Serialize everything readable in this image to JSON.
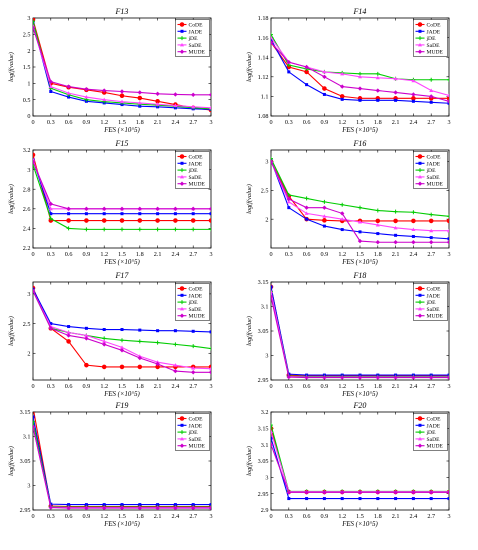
{
  "chart_data": [
    {
      "type": "line",
      "title": "F13",
      "xlabel": "FES (×10^5)",
      "ylabel": "log(f(value)",
      "x": [
        0,
        0.3,
        0.6,
        0.9,
        1.2,
        1.5,
        1.8,
        2.1,
        2.4,
        2.7,
        3
      ],
      "xticks": [
        "0",
        "0.3",
        "0.6",
        "0.9",
        "1.2",
        "1.5",
        "1.8",
        "2.1",
        "2.4",
        "2.7",
        "3"
      ],
      "xlim": [
        0,
        3
      ],
      "ylim": [
        0,
        3
      ],
      "yticks": [
        0,
        0.5,
        1,
        1.5,
        2,
        2.5,
        3
      ],
      "yticklabels": [
        "0",
        "0.5",
        "1",
        "1.5",
        "2",
        "2.5",
        "3"
      ],
      "legend": "top-right",
      "series": [
        {
          "name": "CoDE",
          "color": "#ff0000",
          "values": [
            2.95,
            1.0,
            0.88,
            0.8,
            0.72,
            0.62,
            0.55,
            0.45,
            0.35,
            0.25,
            0.18
          ]
        },
        {
          "name": "JADE",
          "color": "#0000ff",
          "values": [
            2.85,
            0.75,
            0.58,
            0.45,
            0.4,
            0.35,
            0.3,
            0.28,
            0.25,
            0.22,
            0.2
          ]
        },
        {
          "name": "jDE",
          "color": "#00cc00",
          "values": [
            2.9,
            0.85,
            0.65,
            0.5,
            0.44,
            0.4,
            0.36,
            0.33,
            0.3,
            0.25,
            0.22
          ]
        },
        {
          "name": "SaDE",
          "color": "#ff44ff",
          "values": [
            2.75,
            0.9,
            0.7,
            0.58,
            0.5,
            0.44,
            0.4,
            0.36,
            0.32,
            0.28,
            0.25
          ]
        },
        {
          "name": "MUDE",
          "color": "#cc00cc",
          "values": [
            2.7,
            1.05,
            0.9,
            0.82,
            0.78,
            0.75,
            0.72,
            0.68,
            0.66,
            0.65,
            0.65
          ]
        }
      ]
    },
    {
      "type": "line",
      "title": "F14",
      "xlabel": "FES (×10^5)",
      "ylabel": "log(f(value)",
      "x": [
        0,
        0.3,
        0.6,
        0.9,
        1.2,
        1.5,
        1.8,
        2.1,
        2.4,
        2.7,
        3
      ],
      "xticks": [
        "0",
        "0.3",
        "0.6",
        "0.9",
        "1.2",
        "1.5",
        "1.8",
        "2.1",
        "2.4",
        "2.7",
        "3"
      ],
      "xlim": [
        0,
        3
      ],
      "ylim": [
        1.08,
        1.18
      ],
      "yticks": [
        1.08,
        1.1,
        1.12,
        1.14,
        1.16,
        1.18
      ],
      "yticklabels": [
        "1.08",
        "1.1",
        "1.12",
        "1.14",
        "1.16",
        "1.18"
      ],
      "legend": "top-right",
      "series": [
        {
          "name": "CoDE",
          "color": "#ff0000",
          "values": [
            1.155,
            1.13,
            1.125,
            1.108,
            1.1,
            1.098,
            1.098,
            1.098,
            1.098,
            1.098,
            1.098
          ]
        },
        {
          "name": "JADE",
          "color": "#0000ff",
          "values": [
            1.158,
            1.125,
            1.112,
            1.102,
            1.097,
            1.096,
            1.096,
            1.096,
            1.095,
            1.094,
            1.093
          ]
        },
        {
          "name": "jDE",
          "color": "#00cc00",
          "values": [
            1.163,
            1.132,
            1.128,
            1.125,
            1.124,
            1.123,
            1.123,
            1.118,
            1.117,
            1.117,
            1.117
          ]
        },
        {
          "name": "SaDE",
          "color": "#ff44ff",
          "values": [
            1.16,
            1.135,
            1.13,
            1.125,
            1.123,
            1.12,
            1.119,
            1.118,
            1.116,
            1.106,
            1.101
          ]
        },
        {
          "name": "MUDE",
          "color": "#cc00cc",
          "values": [
            1.155,
            1.135,
            1.13,
            1.12,
            1.11,
            1.108,
            1.106,
            1.104,
            1.102,
            1.1,
            1.095
          ]
        }
      ]
    },
    {
      "type": "line",
      "title": "F15",
      "xlabel": "FES (×10^5)",
      "ylabel": "log(f(value)",
      "x": [
        0,
        0.3,
        0.6,
        0.9,
        1.2,
        1.5,
        1.8,
        2.1,
        2.4,
        2.7,
        3
      ],
      "xticks": [
        "0",
        "0.3",
        "0.6",
        "0.9",
        "1.2",
        "1.5",
        "1.8",
        "2.1",
        "2.4",
        "2.7",
        "3"
      ],
      "xlim": [
        0,
        3
      ],
      "ylim": [
        2.2,
        3.2
      ],
      "yticks": [
        2.2,
        2.4,
        2.6,
        2.8,
        3,
        3.2
      ],
      "yticklabels": [
        "2.2",
        "2.4",
        "2.6",
        "2.8",
        "3",
        "3.2"
      ],
      "legend": "top-right",
      "series": [
        {
          "name": "CoDE",
          "color": "#ff0000",
          "values": [
            3.15,
            2.48,
            2.48,
            2.48,
            2.48,
            2.48,
            2.48,
            2.48,
            2.48,
            2.48,
            2.48
          ]
        },
        {
          "name": "JADE",
          "color": "#0000ff",
          "values": [
            3.1,
            2.55,
            2.55,
            2.55,
            2.55,
            2.55,
            2.55,
            2.55,
            2.55,
            2.55,
            2.55
          ]
        },
        {
          "name": "jDE",
          "color": "#00cc00",
          "values": [
            3.05,
            2.5,
            2.4,
            2.39,
            2.39,
            2.39,
            2.39,
            2.39,
            2.39,
            2.39,
            2.39
          ]
        },
        {
          "name": "SaDE",
          "color": "#ff44ff",
          "values": [
            3.1,
            2.6,
            2.6,
            2.6,
            2.6,
            2.6,
            2.6,
            2.6,
            2.6,
            2.6,
            2.6
          ]
        },
        {
          "name": "MUDE",
          "color": "#cc00cc",
          "values": [
            3.08,
            2.65,
            2.6,
            2.6,
            2.6,
            2.6,
            2.6,
            2.6,
            2.6,
            2.6,
            2.6
          ]
        }
      ]
    },
    {
      "type": "line",
      "title": "F16",
      "xlabel": "FES (×10^5)",
      "ylabel": "log(f(value)",
      "x": [
        0,
        0.3,
        0.6,
        0.9,
        1.2,
        1.5,
        1.8,
        2.1,
        2.4,
        2.7,
        3
      ],
      "xticks": [
        "0",
        "0.3",
        "0.6",
        "0.9",
        "1.2",
        "1.5",
        "1.8",
        "2.1",
        "2.4",
        "2.7",
        "3"
      ],
      "xlim": [
        0,
        3
      ],
      "ylim": [
        1.5,
        3.2
      ],
      "yticks": [
        2,
        2.5,
        3
      ],
      "yticklabels": [
        "2",
        "2.5",
        "3"
      ],
      "legend": "top-right",
      "series": [
        {
          "name": "CoDE",
          "color": "#ff0000",
          "values": [
            3.0,
            2.4,
            2.0,
            1.98,
            1.97,
            1.97,
            1.97,
            1.97,
            1.97,
            1.97,
            1.97
          ]
        },
        {
          "name": "JADE",
          "color": "#0000ff",
          "values": [
            3.02,
            2.2,
            2.0,
            1.88,
            1.82,
            1.78,
            1.75,
            1.72,
            1.7,
            1.68,
            1.66
          ]
        },
        {
          "name": "jDE",
          "color": "#00cc00",
          "values": [
            3.05,
            2.42,
            2.36,
            2.3,
            2.25,
            2.2,
            2.15,
            2.13,
            2.12,
            2.08,
            2.05
          ]
        },
        {
          "name": "SaDE",
          "color": "#ff44ff",
          "values": [
            3.0,
            2.3,
            2.1,
            2.05,
            2.0,
            1.95,
            1.9,
            1.85,
            1.82,
            1.8,
            1.8
          ]
        },
        {
          "name": "MUDE",
          "color": "#cc00cc",
          "values": [
            3.0,
            2.35,
            2.2,
            2.2,
            2.1,
            1.62,
            1.6,
            1.6,
            1.6,
            1.6,
            1.6
          ]
        }
      ]
    },
    {
      "type": "line",
      "title": "F17",
      "xlabel": "FES (×10^5)",
      "ylabel": "log(f(value)",
      "x": [
        0,
        0.3,
        0.6,
        0.9,
        1.2,
        1.5,
        1.8,
        2.1,
        2.4,
        2.7,
        3
      ],
      "xticks": [
        "0",
        "0.3",
        "0.6",
        "0.9",
        "1.2",
        "1.5",
        "1.8",
        "2.1",
        "2.4",
        "2.7",
        "3"
      ],
      "xlim": [
        0,
        3
      ],
      "ylim": [
        1.55,
        3.2
      ],
      "yticks": [
        2,
        2.5,
        3
      ],
      "yticklabels": [
        "2",
        "2.5",
        "3"
      ],
      "legend": "top-right",
      "series": [
        {
          "name": "CoDE",
          "color": "#ff0000",
          "values": [
            3.1,
            2.42,
            2.2,
            1.8,
            1.77,
            1.77,
            1.77,
            1.77,
            1.77,
            1.77,
            1.77
          ]
        },
        {
          "name": "JADE",
          "color": "#0000ff",
          "values": [
            3.08,
            2.5,
            2.45,
            2.42,
            2.4,
            2.4,
            2.39,
            2.38,
            2.38,
            2.37,
            2.36
          ]
        },
        {
          "name": "jDE",
          "color": "#00cc00",
          "values": [
            3.05,
            2.42,
            2.35,
            2.3,
            2.25,
            2.22,
            2.2,
            2.18,
            2.15,
            2.12,
            2.08
          ]
        },
        {
          "name": "SaDE",
          "color": "#ff44ff",
          "values": [
            3.05,
            2.45,
            2.35,
            2.3,
            2.2,
            2.1,
            1.95,
            1.85,
            1.8,
            1.75,
            1.74
          ]
        },
        {
          "name": "MUDE",
          "color": "#cc00cc",
          "values": [
            3.05,
            2.42,
            2.3,
            2.25,
            2.15,
            2.05,
            1.92,
            1.82,
            1.7,
            1.68,
            1.68
          ]
        }
      ]
    },
    {
      "type": "line",
      "title": "F18",
      "xlabel": "FES (×10^5)",
      "ylabel": "log(f(value)",
      "x": [
        0,
        0.3,
        0.6,
        0.9,
        1.2,
        1.5,
        1.8,
        2.1,
        2.4,
        2.7,
        3
      ],
      "xticks": [
        "0",
        "0.3",
        "0.6",
        "0.9",
        "1.2",
        "1.5",
        "1.8",
        "2.1",
        "2.4",
        "2.7",
        "3"
      ],
      "xlim": [
        0,
        3
      ],
      "ylim": [
        2.95,
        3.15
      ],
      "yticks": [
        2.95,
        3,
        3.05,
        3.1,
        3.15
      ],
      "yticklabels": [
        "2.95",
        "3",
        "3.05",
        "3.1",
        "3.15"
      ],
      "legend": "top-right",
      "series": [
        {
          "name": "CoDE",
          "color": "#ff0000",
          "values": [
            3.14,
            2.96,
            2.958,
            2.958,
            2.958,
            2.958,
            2.958,
            2.958,
            2.958,
            2.958,
            2.958
          ]
        },
        {
          "name": "JADE",
          "color": "#0000ff",
          "values": [
            3.14,
            2.962,
            2.96,
            2.96,
            2.96,
            2.96,
            2.96,
            2.96,
            2.96,
            2.96,
            2.96
          ]
        },
        {
          "name": "jDE",
          "color": "#00cc00",
          "values": [
            3.13,
            2.958,
            2.957,
            2.957,
            2.957,
            2.957,
            2.957,
            2.957,
            2.957,
            2.957,
            2.957
          ]
        },
        {
          "name": "SaDE",
          "color": "#ff44ff",
          "values": [
            3.13,
            2.957,
            2.956,
            2.956,
            2.956,
            2.956,
            2.956,
            2.956,
            2.956,
            2.956,
            2.956
          ]
        },
        {
          "name": "MUDE",
          "color": "#cc00cc",
          "values": [
            3.12,
            2.956,
            2.955,
            2.955,
            2.955,
            2.955,
            2.955,
            2.955,
            2.955,
            2.955,
            2.955
          ]
        }
      ]
    },
    {
      "type": "line",
      "title": "F19",
      "xlabel": "FES (×10^5)",
      "ylabel": "log(f(value)",
      "x": [
        0,
        0.3,
        0.6,
        0.9,
        1.2,
        1.5,
        1.8,
        2.1,
        2.4,
        2.7,
        3
      ],
      "xticks": [
        "0",
        "0.3",
        "0.6",
        "0.9",
        "1.2",
        "1.5",
        "1.8",
        "2.1",
        "2.4",
        "2.7",
        "3"
      ],
      "xlim": [
        0,
        3
      ],
      "ylim": [
        2.95,
        3.15
      ],
      "yticks": [
        2.95,
        3,
        3.05,
        3.1,
        3.15
      ],
      "yticklabels": [
        "2.95",
        "3",
        "3.05",
        "3.1",
        "3.15"
      ],
      "legend": "top-right",
      "series": [
        {
          "name": "CoDE",
          "color": "#ff0000",
          "values": [
            3.16,
            2.958,
            2.957,
            2.957,
            2.957,
            2.957,
            2.957,
            2.957,
            2.957,
            2.957,
            2.957
          ]
        },
        {
          "name": "JADE",
          "color": "#0000ff",
          "values": [
            3.14,
            2.962,
            2.961,
            2.961,
            2.961,
            2.961,
            2.961,
            2.961,
            2.961,
            2.961,
            2.961
          ]
        },
        {
          "name": "jDE",
          "color": "#00cc00",
          "values": [
            3.13,
            2.957,
            2.956,
            2.956,
            2.956,
            2.956,
            2.956,
            2.956,
            2.956,
            2.956,
            2.956
          ]
        },
        {
          "name": "SaDE",
          "color": "#ff44ff",
          "values": [
            3.12,
            2.956,
            2.955,
            2.955,
            2.955,
            2.955,
            2.955,
            2.955,
            2.955,
            2.955,
            2.955
          ]
        },
        {
          "name": "MUDE",
          "color": "#cc00cc",
          "values": [
            3.12,
            2.955,
            2.954,
            2.954,
            2.954,
            2.954,
            2.954,
            2.954,
            2.954,
            2.954,
            2.954
          ]
        }
      ]
    },
    {
      "type": "line",
      "title": "F20",
      "xlabel": "FES (×10^5)",
      "ylabel": "log(f(value)",
      "x": [
        0,
        0.3,
        0.6,
        0.9,
        1.2,
        1.5,
        1.8,
        2.1,
        2.4,
        2.7,
        3
      ],
      "xticks": [
        "0",
        "0.3",
        "0.6",
        "0.9",
        "1.2",
        "1.5",
        "1.8",
        "2.1",
        "2.4",
        "2.7",
        "3"
      ],
      "xlim": [
        0,
        3
      ],
      "ylim": [
        2.9,
        3.2
      ],
      "yticks": [
        2.9,
        2.95,
        3,
        3.05,
        3.1,
        3.15,
        3.2
      ],
      "yticklabels": [
        "2.9",
        "2.95",
        "3",
        "3.05",
        "3.1",
        "3.15",
        "3.2"
      ],
      "legend": "top-right",
      "series": [
        {
          "name": "CoDE",
          "color": "#ff0000",
          "values": [
            3.15,
            2.955,
            2.955,
            2.955,
            2.955,
            2.955,
            2.955,
            2.955,
            2.955,
            2.955,
            2.955
          ]
        },
        {
          "name": "JADE",
          "color": "#0000ff",
          "values": [
            3.12,
            2.935,
            2.935,
            2.935,
            2.935,
            2.935,
            2.935,
            2.935,
            2.935,
            2.935,
            2.935
          ]
        },
        {
          "name": "jDE",
          "color": "#00cc00",
          "values": [
            3.16,
            2.957,
            2.957,
            2.957,
            2.957,
            2.957,
            2.957,
            2.957,
            2.957,
            2.957,
            2.957
          ]
        },
        {
          "name": "SaDE",
          "color": "#ff44ff",
          "values": [
            3.14,
            2.956,
            2.956,
            2.956,
            2.956,
            2.956,
            2.956,
            2.956,
            2.956,
            2.956,
            2.956
          ]
        },
        {
          "name": "MUDE",
          "color": "#cc00cc",
          "values": [
            3.1,
            2.954,
            2.954,
            2.954,
            2.954,
            2.954,
            2.954,
            2.954,
            2.954,
            2.954,
            2.954
          ]
        }
      ]
    }
  ]
}
